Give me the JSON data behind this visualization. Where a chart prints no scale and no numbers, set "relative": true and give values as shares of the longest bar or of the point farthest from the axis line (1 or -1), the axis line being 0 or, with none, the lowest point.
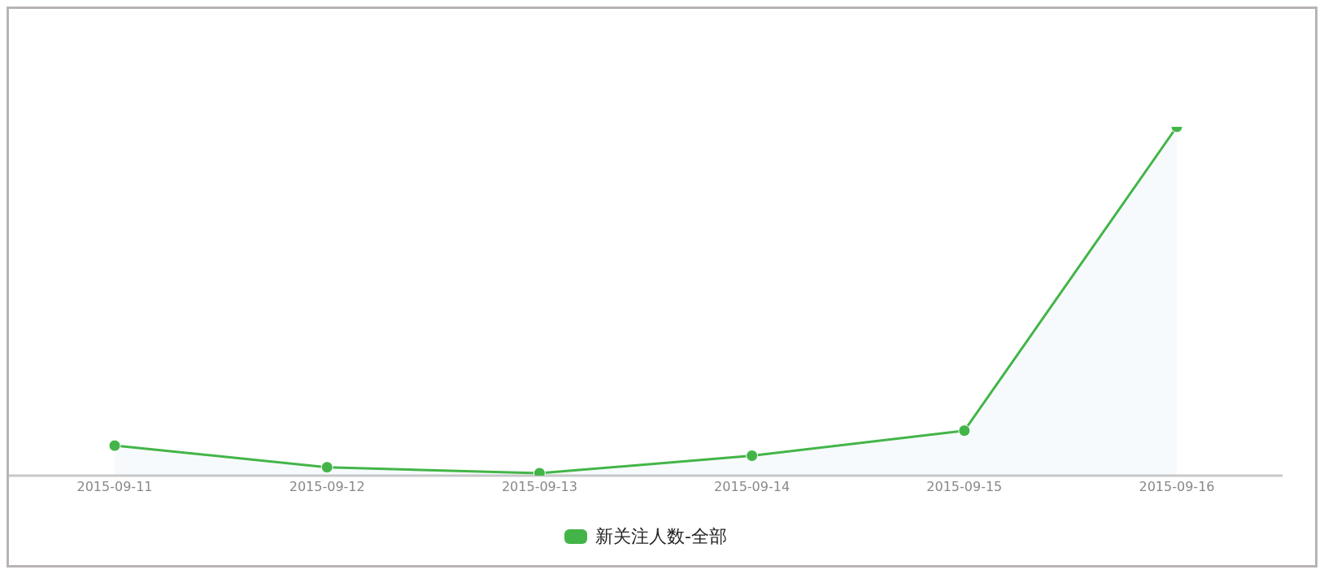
{
  "chart_data": {
    "type": "area",
    "relative": true,
    "categories": [
      "2015-09-11",
      "2015-09-12",
      "2015-09-13",
      "2015-09-14",
      "2015-09-15",
      "2015-09-16"
    ],
    "series": [
      {
        "name": "新关注人数-全部",
        "color": "#43b548",
        "values": [
          0.086,
          0.024,
          0.007,
          0.057,
          0.129,
          1
        ]
      }
    ],
    "marker": "circle",
    "legend": "bottom"
  }
}
